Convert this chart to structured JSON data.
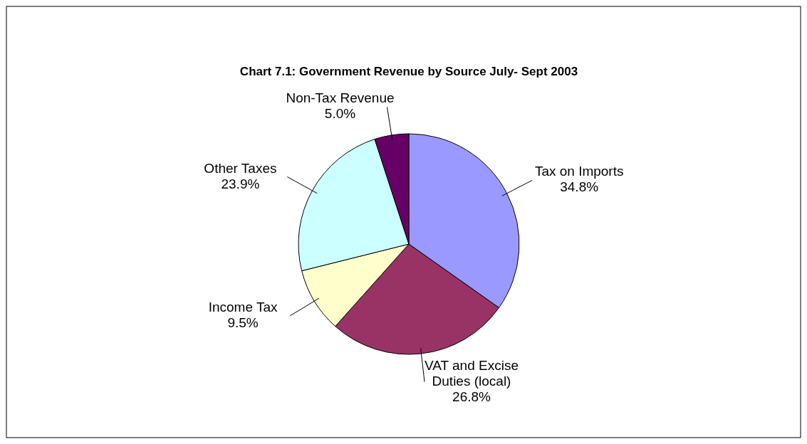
{
  "chart_data": {
    "type": "pie",
    "title": "Chart 7.1: Government Revenue by Source July- Sept 2003",
    "categories": [
      "Tax on Imports",
      "VAT and Excise Duties (local)",
      "Income Tax",
      "Other Taxes",
      "Non-Tax Revenue"
    ],
    "values": [
      34.8,
      26.8,
      9.5,
      23.9,
      5.0
    ],
    "value_labels": [
      "34.8%",
      "26.8%",
      "9.5%",
      "23.9%",
      "5.0%"
    ],
    "colors": [
      "#9999ff",
      "#993366",
      "#ffffcc",
      "#ccffff",
      "#660066"
    ]
  }
}
